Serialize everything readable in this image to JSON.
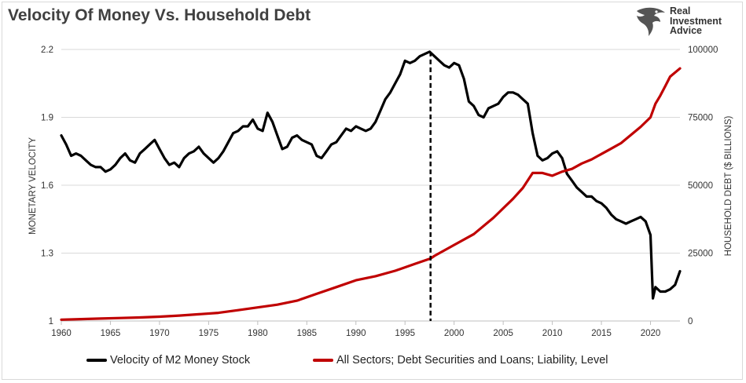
{
  "title": "Velocity Of Money Vs. Household Debt",
  "logo": {
    "line1": "Real",
    "line2": "Investment",
    "line3": "Advice",
    "icon": "eagle-icon"
  },
  "colors": {
    "velocity": "#000000",
    "debt": "#c00000",
    "grid": "#d9d9d9",
    "marker": "#000000"
  },
  "chart_data": {
    "type": "line",
    "title": "Velocity Of Money Vs. Household Debt",
    "xlabel": "",
    "ylabel": "MONETARY VELOCITY",
    "y2label": "HOUSEHOLD DEBT ($ BILLIONS)",
    "xlim": [
      1960,
      2023
    ],
    "ylim": [
      1,
      2.2
    ],
    "y2lim": [
      0,
      100000
    ],
    "x_ticks": [
      "1960",
      "1965",
      "1970",
      "1975",
      "1980",
      "1985",
      "1990",
      "1995",
      "2000",
      "2005",
      "2010",
      "2015",
      "2020"
    ],
    "y_ticks": [
      "1",
      "1.3",
      "1.6",
      "1.9",
      "2.2"
    ],
    "y2_ticks": [
      "0",
      "25000",
      "50000",
      "75000",
      "100000"
    ],
    "grid": "horizontal",
    "legend_position": "bottom",
    "annotation": {
      "type": "vertical-dashed-line",
      "x": 1997.6
    },
    "series": [
      {
        "name": "Velocity of M2 Money Stock",
        "axis": "left",
        "x": [
          1960,
          1960.5,
          1961,
          1961.5,
          1962,
          1962.5,
          1963,
          1963.5,
          1964,
          1964.5,
          1965,
          1965.5,
          1966,
          1966.5,
          1967,
          1967.5,
          1968,
          1968.5,
          1969,
          1969.5,
          1970,
          1970.5,
          1971,
          1971.5,
          1972,
          1972.5,
          1973,
          1973.5,
          1974,
          1974.5,
          1975,
          1975.5,
          1976,
          1976.5,
          1977,
          1977.5,
          1978,
          1978.5,
          1979,
          1979.5,
          1980,
          1980.5,
          1981,
          1981.5,
          1982,
          1982.5,
          1983,
          1983.5,
          1984,
          1984.5,
          1985,
          1985.5,
          1986,
          1986.5,
          1987,
          1987.5,
          1988,
          1988.5,
          1989,
          1989.5,
          1990,
          1990.5,
          1991,
          1991.5,
          1992,
          1992.5,
          1993,
          1993.5,
          1994,
          1994.5,
          1995,
          1995.5,
          1996,
          1996.5,
          1997,
          1997.5,
          1998,
          1998.5,
          1999,
          1999.5,
          2000,
          2000.5,
          2001,
          2001.5,
          2002,
          2002.5,
          2003,
          2003.5,
          2004,
          2004.5,
          2005,
          2005.5,
          2006,
          2006.5,
          2007,
          2007.5,
          2008,
          2008.5,
          2009,
          2009.5,
          2010,
          2010.5,
          2011,
          2011.5,
          2012,
          2012.5,
          2013,
          2013.5,
          2014,
          2014.5,
          2015,
          2015.5,
          2016,
          2016.5,
          2017,
          2017.5,
          2018,
          2018.5,
          2019,
          2019.5,
          2020,
          2020.25,
          2020.5,
          2021,
          2021.5,
          2022,
          2022.5,
          2023
        ],
        "values": [
          1.82,
          1.78,
          1.73,
          1.74,
          1.73,
          1.71,
          1.69,
          1.68,
          1.68,
          1.66,
          1.67,
          1.69,
          1.72,
          1.74,
          1.71,
          1.7,
          1.74,
          1.76,
          1.78,
          1.8,
          1.76,
          1.72,
          1.69,
          1.7,
          1.68,
          1.72,
          1.74,
          1.75,
          1.77,
          1.74,
          1.72,
          1.7,
          1.72,
          1.75,
          1.79,
          1.83,
          1.84,
          1.86,
          1.86,
          1.89,
          1.85,
          1.84,
          1.92,
          1.88,
          1.82,
          1.76,
          1.77,
          1.81,
          1.82,
          1.8,
          1.79,
          1.78,
          1.73,
          1.72,
          1.75,
          1.78,
          1.79,
          1.82,
          1.85,
          1.84,
          1.86,
          1.85,
          1.84,
          1.85,
          1.88,
          1.93,
          1.98,
          2.01,
          2.05,
          2.09,
          2.15,
          2.14,
          2.15,
          2.17,
          2.18,
          2.19,
          2.17,
          2.15,
          2.13,
          2.12,
          2.14,
          2.13,
          2.07,
          1.97,
          1.95,
          1.91,
          1.9,
          1.94,
          1.95,
          1.96,
          1.99,
          2.01,
          2.01,
          2.0,
          1.98,
          1.96,
          1.83,
          1.73,
          1.71,
          1.72,
          1.74,
          1.75,
          1.72,
          1.65,
          1.62,
          1.59,
          1.57,
          1.55,
          1.55,
          1.53,
          1.52,
          1.5,
          1.47,
          1.45,
          1.44,
          1.43,
          1.44,
          1.45,
          1.46,
          1.44,
          1.38,
          1.1,
          1.15,
          1.13,
          1.13,
          1.14,
          1.16,
          1.22
        ]
      },
      {
        "name": "All Sectors; Debt Securities and Loans; Liability, Level",
        "axis": "right",
        "x": [
          1960,
          1962,
          1964,
          1966,
          1968,
          1970,
          1972,
          1974,
          1976,
          1978,
          1980,
          1982,
          1984,
          1986,
          1988,
          1990,
          1992,
          1994,
          1996,
          1997.6,
          1998,
          2000,
          2002,
          2004,
          2006,
          2007,
          2008,
          2009,
          2010,
          2011,
          2012,
          2013,
          2014,
          2015,
          2016,
          2017,
          2018,
          2019,
          2020,
          2020.5,
          2021,
          2021.5,
          2022,
          2023
        ],
        "values": [
          500,
          700,
          900,
          1100,
          1300,
          1600,
          2000,
          2500,
          3000,
          4000,
          5000,
          6000,
          7500,
          10000,
          12500,
          15000,
          16500,
          18500,
          21000,
          23000,
          24000,
          28000,
          32000,
          38000,
          45000,
          49000,
          54500,
          54500,
          53500,
          55000,
          56000,
          58000,
          59500,
          61500,
          63500,
          65500,
          68500,
          71500,
          75000,
          80000,
          83000,
          86500,
          90000,
          93000
        ]
      }
    ]
  }
}
